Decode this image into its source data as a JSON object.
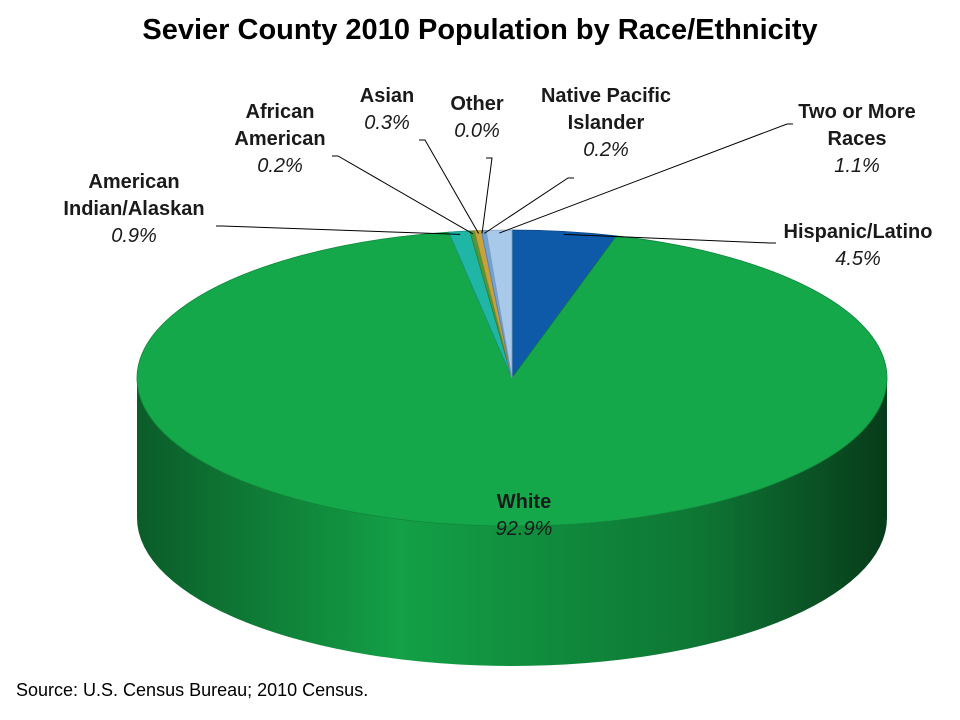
{
  "chart_data": {
    "type": "pie",
    "title": "Sevier County 2010 Population by Race/Ethnicity",
    "source": "Source: U.S. Census Bureau; 2010 Census.",
    "slices": [
      {
        "key": "hispanic",
        "lines": [
          "Hispanic/Latino"
        ],
        "value": 4.5,
        "pct_label": "4.5%",
        "color": "#0f5aa8"
      },
      {
        "key": "white",
        "lines": [
          "White"
        ],
        "value": 92.9,
        "pct_label": "92.9%",
        "color": "#14a84a"
      },
      {
        "key": "amind",
        "lines": [
          "American",
          "Indian/Alaskan"
        ],
        "value": 0.9,
        "pct_label": "0.9%",
        "color": "#1fb6a6"
      },
      {
        "key": "afram",
        "lines": [
          "African",
          "American"
        ],
        "value": 0.2,
        "pct_label": "0.2%",
        "color": "#4a9a3a"
      },
      {
        "key": "asian",
        "lines": [
          "Asian"
        ],
        "value": 0.3,
        "pct_label": "0.3%",
        "color": "#c8a23a"
      },
      {
        "key": "other",
        "lines": [
          "Other"
        ],
        "value": 0.0,
        "pct_label": "0.0%",
        "color": "#8a8a8a"
      },
      {
        "key": "napi",
        "lines": [
          "Native Pacific",
          "Islander"
        ],
        "value": 0.2,
        "pct_label": "0.2%",
        "color": "#6fa3d8"
      },
      {
        "key": "twomore",
        "lines": [
          "Two or More",
          "Races"
        ],
        "value": 1.1,
        "pct_label": "1.1%",
        "color": "#a9c9ea"
      }
    ]
  }
}
